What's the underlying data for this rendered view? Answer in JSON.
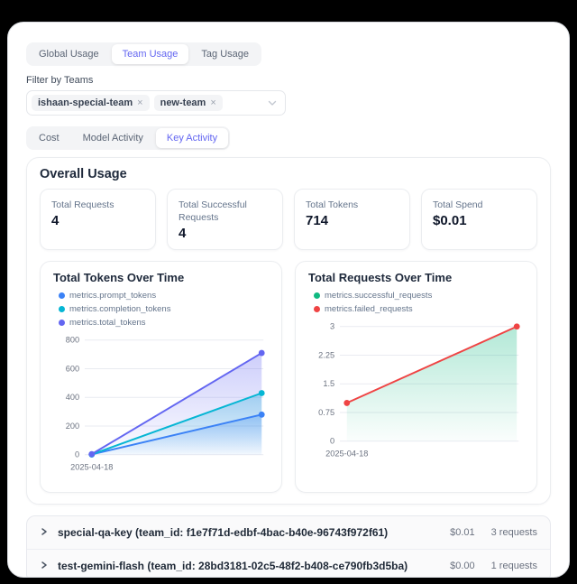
{
  "theme": {
    "accent": "#6366f1",
    "page_bg": "#ffffff",
    "outer_bg": "#000000"
  },
  "top_tabs": {
    "items": [
      "Global Usage",
      "Team Usage",
      "Tag Usage"
    ],
    "active": "Team Usage"
  },
  "team_filter": {
    "label": "Filter by Teams",
    "chips": [
      "ishaan-special-team",
      "new-team"
    ],
    "remove_icon": "×"
  },
  "activity_tabs": {
    "items": [
      "Cost",
      "Model Activity",
      "Key Activity"
    ],
    "active": "Key Activity"
  },
  "overall_usage": {
    "title": "Overall Usage",
    "stats": [
      {
        "label": "Total Requests",
        "value": "4"
      },
      {
        "label": "Total Successful Requests",
        "value": "4"
      },
      {
        "label": "Total Tokens",
        "value": "714"
      },
      {
        "label": "Total Spend",
        "value": "$0.01"
      }
    ]
  },
  "chart_data": [
    {
      "type": "area",
      "title": "Total Tokens Over Time",
      "x": [
        "2025-04-18",
        "2025-04-18"
      ],
      "x_tick_labels": [
        "2025-04-18"
      ],
      "series": [
        {
          "name": "metrics.prompt_tokens",
          "color": "#3b82f6",
          "values": [
            2,
            280
          ]
        },
        {
          "name": "metrics.completion_tokens",
          "color": "#06b6d4",
          "values": [
            2,
            430
          ]
        },
        {
          "name": "metrics.total_tokens",
          "color": "#6366f1",
          "values": [
            4,
            710
          ]
        }
      ],
      "ylim": [
        0,
        800
      ],
      "yticks": [
        0,
        200,
        400,
        600,
        800
      ],
      "grid": true,
      "legend_position": "top"
    },
    {
      "type": "area",
      "title": "Total Requests Over Time",
      "x": [
        "2025-04-18",
        "2025-04-18"
      ],
      "x_tick_labels": [
        "2025-04-18"
      ],
      "series": [
        {
          "name": "metrics.successful_requests",
          "color": "#10b981",
          "values": [
            1,
            3
          ],
          "render": "area"
        },
        {
          "name": "metrics.failed_requests",
          "color": "#ef4444",
          "values": [
            1,
            3
          ],
          "render": "line"
        }
      ],
      "ylim": [
        0,
        3
      ],
      "yticks": [
        0,
        0.75,
        1.5,
        2.25,
        3
      ],
      "grid": true,
      "legend_position": "top"
    }
  ],
  "key_rows": [
    {
      "label": "special-qa-key (team_id: f1e7f71d-edbf-4bac-b40e-96743f972f61)",
      "spend": "$0.01",
      "requests": "3 requests"
    },
    {
      "label": "test-gemini-flash (team_id: 28bd3181-02c5-48f2-b408-ce790fb3d5ba)",
      "spend": "$0.00",
      "requests": "1 requests"
    }
  ]
}
